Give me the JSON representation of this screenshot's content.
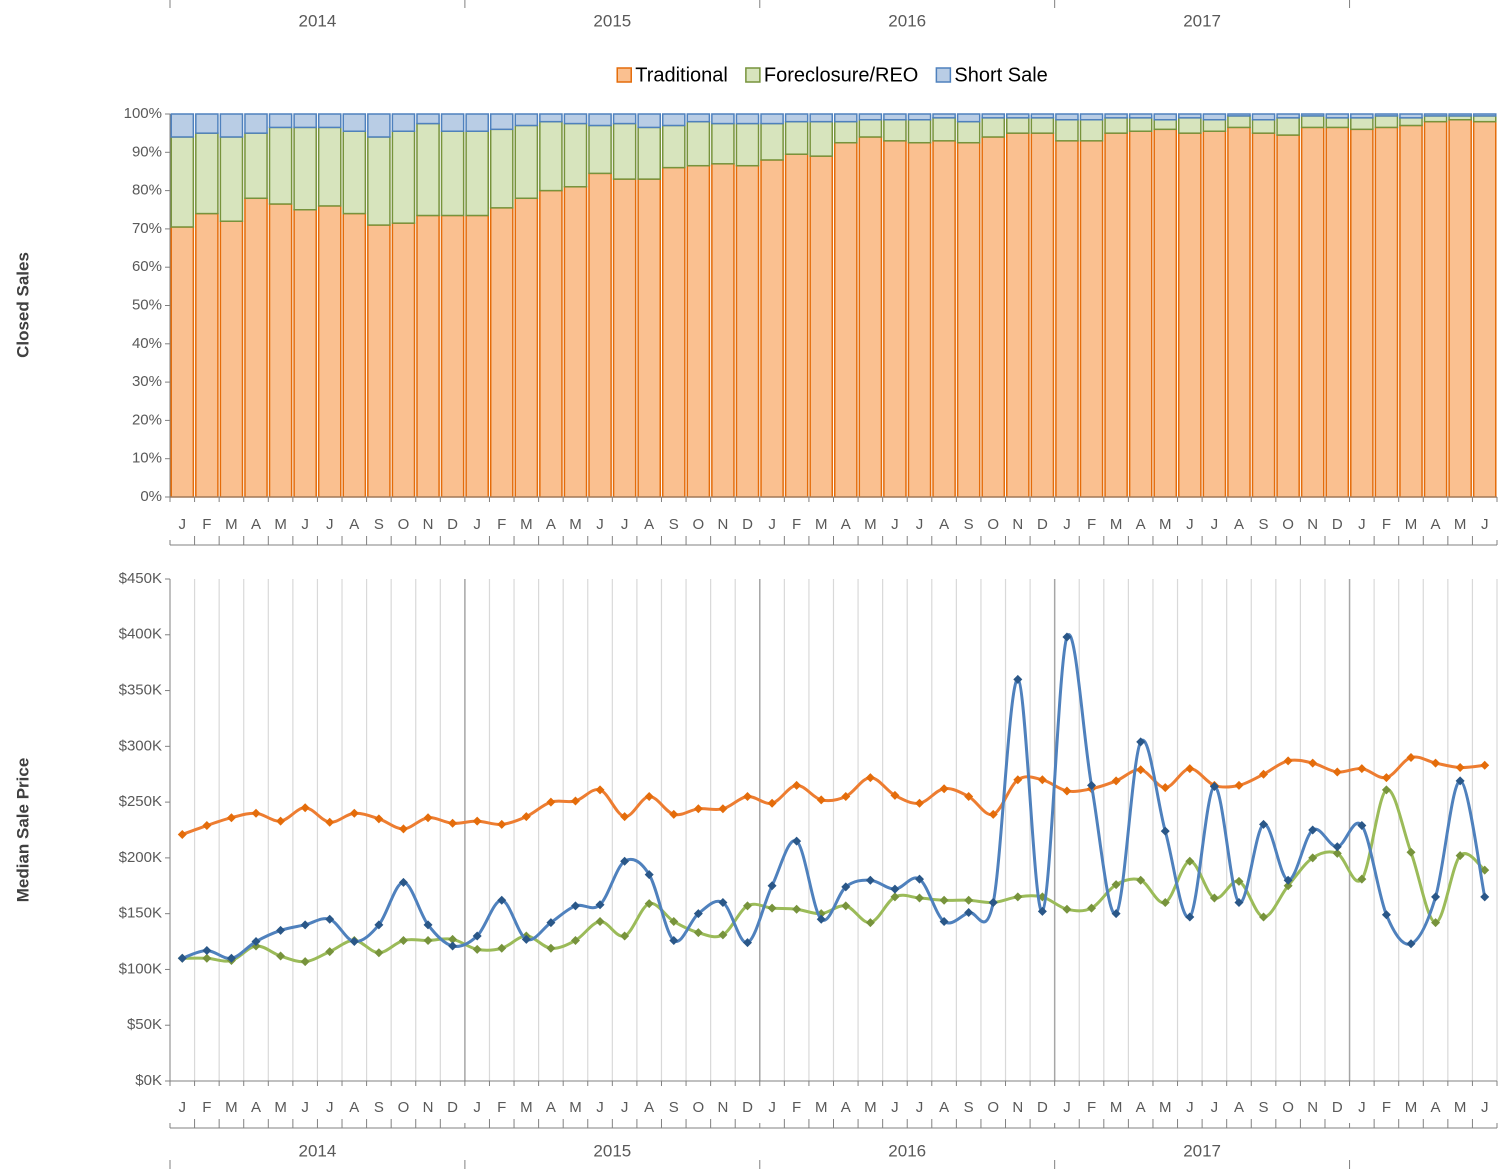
{
  "chart_data": [
    {
      "type": "bar",
      "stacked": true,
      "y_label": "Closed Sales",
      "legend": "top",
      "categories": [
        "J",
        "F",
        "M",
        "A",
        "M",
        "J",
        "J",
        "A",
        "S",
        "O",
        "N",
        "D",
        "J",
        "F",
        "M",
        "A",
        "M",
        "J",
        "J",
        "A",
        "S",
        "O",
        "N",
        "D",
        "J",
        "F",
        "M",
        "A",
        "M",
        "J",
        "J",
        "A",
        "S",
        "O",
        "N",
        "D",
        "J",
        "F",
        "M",
        "A",
        "M",
        "J",
        "J",
        "A",
        "S",
        "O",
        "N",
        "D",
        "J",
        "F",
        "M",
        "A",
        "M",
        "J"
      ],
      "year_labels": [
        "2014",
        "2015",
        "2016",
        "2017"
      ],
      "ylim": [
        0,
        100
      ],
      "yticks": [
        {
          "value": 0,
          "label": "0%"
        },
        {
          "value": 10,
          "label": "10%"
        },
        {
          "value": 20,
          "label": "20%"
        },
        {
          "value": 30,
          "label": "30%"
        },
        {
          "value": 40,
          "label": "40%"
        },
        {
          "value": 50,
          "label": "50%"
        },
        {
          "value": 60,
          "label": "60%"
        },
        {
          "value": 70,
          "label": "70%"
        },
        {
          "value": 80,
          "label": "80%"
        },
        {
          "value": 90,
          "label": "90%"
        },
        {
          "value": 100,
          "label": "100%"
        }
      ],
      "series": [
        {
          "name": "Traditional",
          "color": "#fac090",
          "edge_color": "#e46c0a",
          "values": [
            70.5,
            74,
            72,
            78,
            76.5,
            75,
            76,
            74,
            71,
            71.5,
            73.5,
            73.5,
            73.5,
            75.5,
            78,
            80,
            81,
            84.5,
            83,
            83,
            86,
            86.5,
            87,
            86.5,
            88,
            89.5,
            89,
            92.5,
            94,
            93,
            92.5,
            93,
            92.5,
            94,
            95,
            95,
            93,
            93,
            95,
            95.5,
            96,
            95,
            95.5,
            96.5,
            95,
            94.5,
            96.5,
            96.5,
            96,
            96.5,
            97,
            98,
            98.5,
            98
          ]
        },
        {
          "name": "Foreclosure/REO",
          "color": "#d7e4bd",
          "edge_color": "#77933c",
          "values": [
            23.5,
            21,
            22,
            17,
            20,
            21.5,
            20.5,
            21.5,
            23,
            24,
            24,
            22,
            22,
            20.5,
            19,
            18,
            16.5,
            12.5,
            14.5,
            13.5,
            11,
            11.5,
            10.5,
            11,
            9.5,
            8.5,
            9,
            5.5,
            4.5,
            5.5,
            6,
            6,
            5.5,
            5,
            4,
            4,
            5.5,
            5.5,
            4,
            3.5,
            2.5,
            4,
            3,
            3,
            3.5,
            4.5,
            3,
            2.5,
            3,
            3,
            2,
            1.5,
            1,
            1.5
          ]
        },
        {
          "name": "Short Sale",
          "color": "#b9cde5",
          "edge_color": "#4f81bd",
          "values": [
            6,
            5,
            6,
            5,
            3.5,
            3.5,
            3.5,
            4.5,
            6,
            4.5,
            2.5,
            4.5,
            4.5,
            4,
            3,
            2,
            2.5,
            3,
            2.5,
            3.5,
            3,
            2,
            2.5,
            2.5,
            2.5,
            2,
            2,
            2,
            1.5,
            1.5,
            1.5,
            1,
            2,
            1,
            1,
            1,
            1.5,
            1.5,
            1,
            1,
            1.5,
            1,
            1.5,
            0.5,
            1.5,
            1,
            0.5,
            1,
            1,
            0.5,
            1,
            0.5,
            0.5,
            0.5
          ]
        }
      ]
    },
    {
      "type": "line",
      "y_label": "Median Sale Price",
      "smooth": true,
      "grid": "x",
      "categories": [
        "J",
        "F",
        "M",
        "A",
        "M",
        "J",
        "J",
        "A",
        "S",
        "O",
        "N",
        "D",
        "J",
        "F",
        "M",
        "A",
        "M",
        "J",
        "J",
        "A",
        "S",
        "O",
        "N",
        "D",
        "J",
        "F",
        "M",
        "A",
        "M",
        "J",
        "J",
        "A",
        "S",
        "O",
        "N",
        "D",
        "J",
        "F",
        "M",
        "A",
        "M",
        "J",
        "J",
        "A",
        "S",
        "O",
        "N",
        "D",
        "J",
        "F",
        "M",
        "A",
        "M",
        "J"
      ],
      "year_labels": [
        "2014",
        "2015",
        "2016",
        "2017"
      ],
      "ylim": [
        0,
        450000
      ],
      "yticks": [
        {
          "value": 0,
          "label": "$0K"
        },
        {
          "value": 50000,
          "label": "$50K"
        },
        {
          "value": 100000,
          "label": "$100K"
        },
        {
          "value": 150000,
          "label": "$150K"
        },
        {
          "value": 200000,
          "label": "$200K"
        },
        {
          "value": 250000,
          "label": "$250K"
        },
        {
          "value": 300000,
          "label": "$300K"
        },
        {
          "value": 350000,
          "label": "$350K"
        },
        {
          "value": 400000,
          "label": "$400K"
        },
        {
          "value": 450000,
          "label": "$450K"
        }
      ],
      "series": [
        {
          "color": "#ed7d31",
          "marker_color": "#e46c0a",
          "values": [
            221000,
            229000,
            236000,
            240000,
            233000,
            245000,
            232000,
            240000,
            235000,
            226000,
            236000,
            231000,
            233000,
            230000,
            237000,
            250000,
            251000,
            261000,
            237000,
            255000,
            239000,
            244000,
            244000,
            255000,
            249000,
            265000,
            252000,
            255000,
            272000,
            256000,
            249000,
            262000,
            255000,
            239000,
            270000,
            270000,
            260000,
            262000,
            269000,
            279000,
            263000,
            280000,
            265000,
            265000,
            275000,
            287000,
            285000,
            277000,
            280000,
            272000,
            290000,
            285000,
            281000,
            283000
          ]
        },
        {
          "color": "#9bbb59",
          "marker_color": "#77933c",
          "values": [
            110000,
            110000,
            108000,
            121000,
            112000,
            107000,
            116000,
            126000,
            115000,
            126000,
            126000,
            127000,
            118000,
            119000,
            130000,
            119000,
            126000,
            143000,
            130000,
            159000,
            143000,
            133000,
            131000,
            157000,
            155000,
            154000,
            150000,
            157000,
            142000,
            165000,
            164000,
            162000,
            162000,
            160000,
            165000,
            165000,
            154000,
            155000,
            176000,
            180000,
            160000,
            197000,
            164000,
            179000,
            147000,
            175000,
            200000,
            204000,
            181000,
            261000,
            205000,
            142000,
            202000,
            189000
          ]
        },
        {
          "color": "#4f81bd",
          "marker_color": "#2a5788",
          "values": [
            110000,
            117000,
            110000,
            125000,
            135000,
            140000,
            145000,
            125000,
            140000,
            178000,
            140000,
            121000,
            130000,
            162000,
            127000,
            142000,
            157000,
            158000,
            197000,
            185000,
            126000,
            150000,
            160000,
            124000,
            175000,
            215000,
            145000,
            174000,
            180000,
            172000,
            181000,
            143000,
            151000,
            160000,
            360000,
            152000,
            398000,
            265000,
            150000,
            304000,
            224000,
            147000,
            264000,
            160000,
            230000,
            180000,
            225000,
            210000,
            229000,
            149000,
            123000,
            165000,
            269000,
            165000
          ]
        }
      ]
    }
  ]
}
